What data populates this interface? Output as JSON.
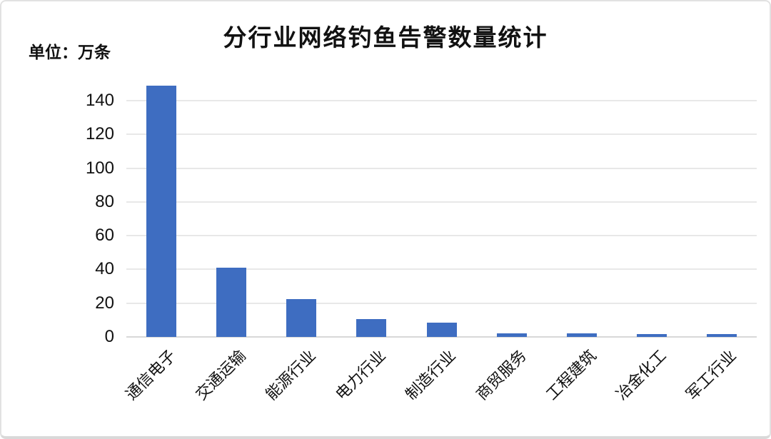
{
  "header": {
    "title": "分行业网络钓鱼告警数量统计",
    "unit_label": "单位：万条"
  },
  "chart_data": {
    "type": "bar",
    "title": "分行业网络钓鱼告警数量统计",
    "unit": "万条",
    "categories": [
      "通信电子",
      "交通运输",
      "能源行业",
      "电力行业",
      "制造行业",
      "商贸服务",
      "工程建筑",
      "冶金化工",
      "军工行业"
    ],
    "values": [
      149,
      41,
      22.5,
      10.5,
      8.5,
      2,
      2,
      1.5,
      1.5
    ],
    "yticks": [
      0,
      20,
      40,
      60,
      80,
      100,
      120,
      140
    ],
    "ylim": [
      0,
      156.5
    ],
    "xlabel": "",
    "ylabel": "",
    "grid": true,
    "legend_position": "none",
    "x_label_rotation_deg": -45,
    "bar_color": "#3E6DC1",
    "gridline_color": "#e8e8e8",
    "baseline_color": "#d8d8d8",
    "text_color": "#111111"
  }
}
